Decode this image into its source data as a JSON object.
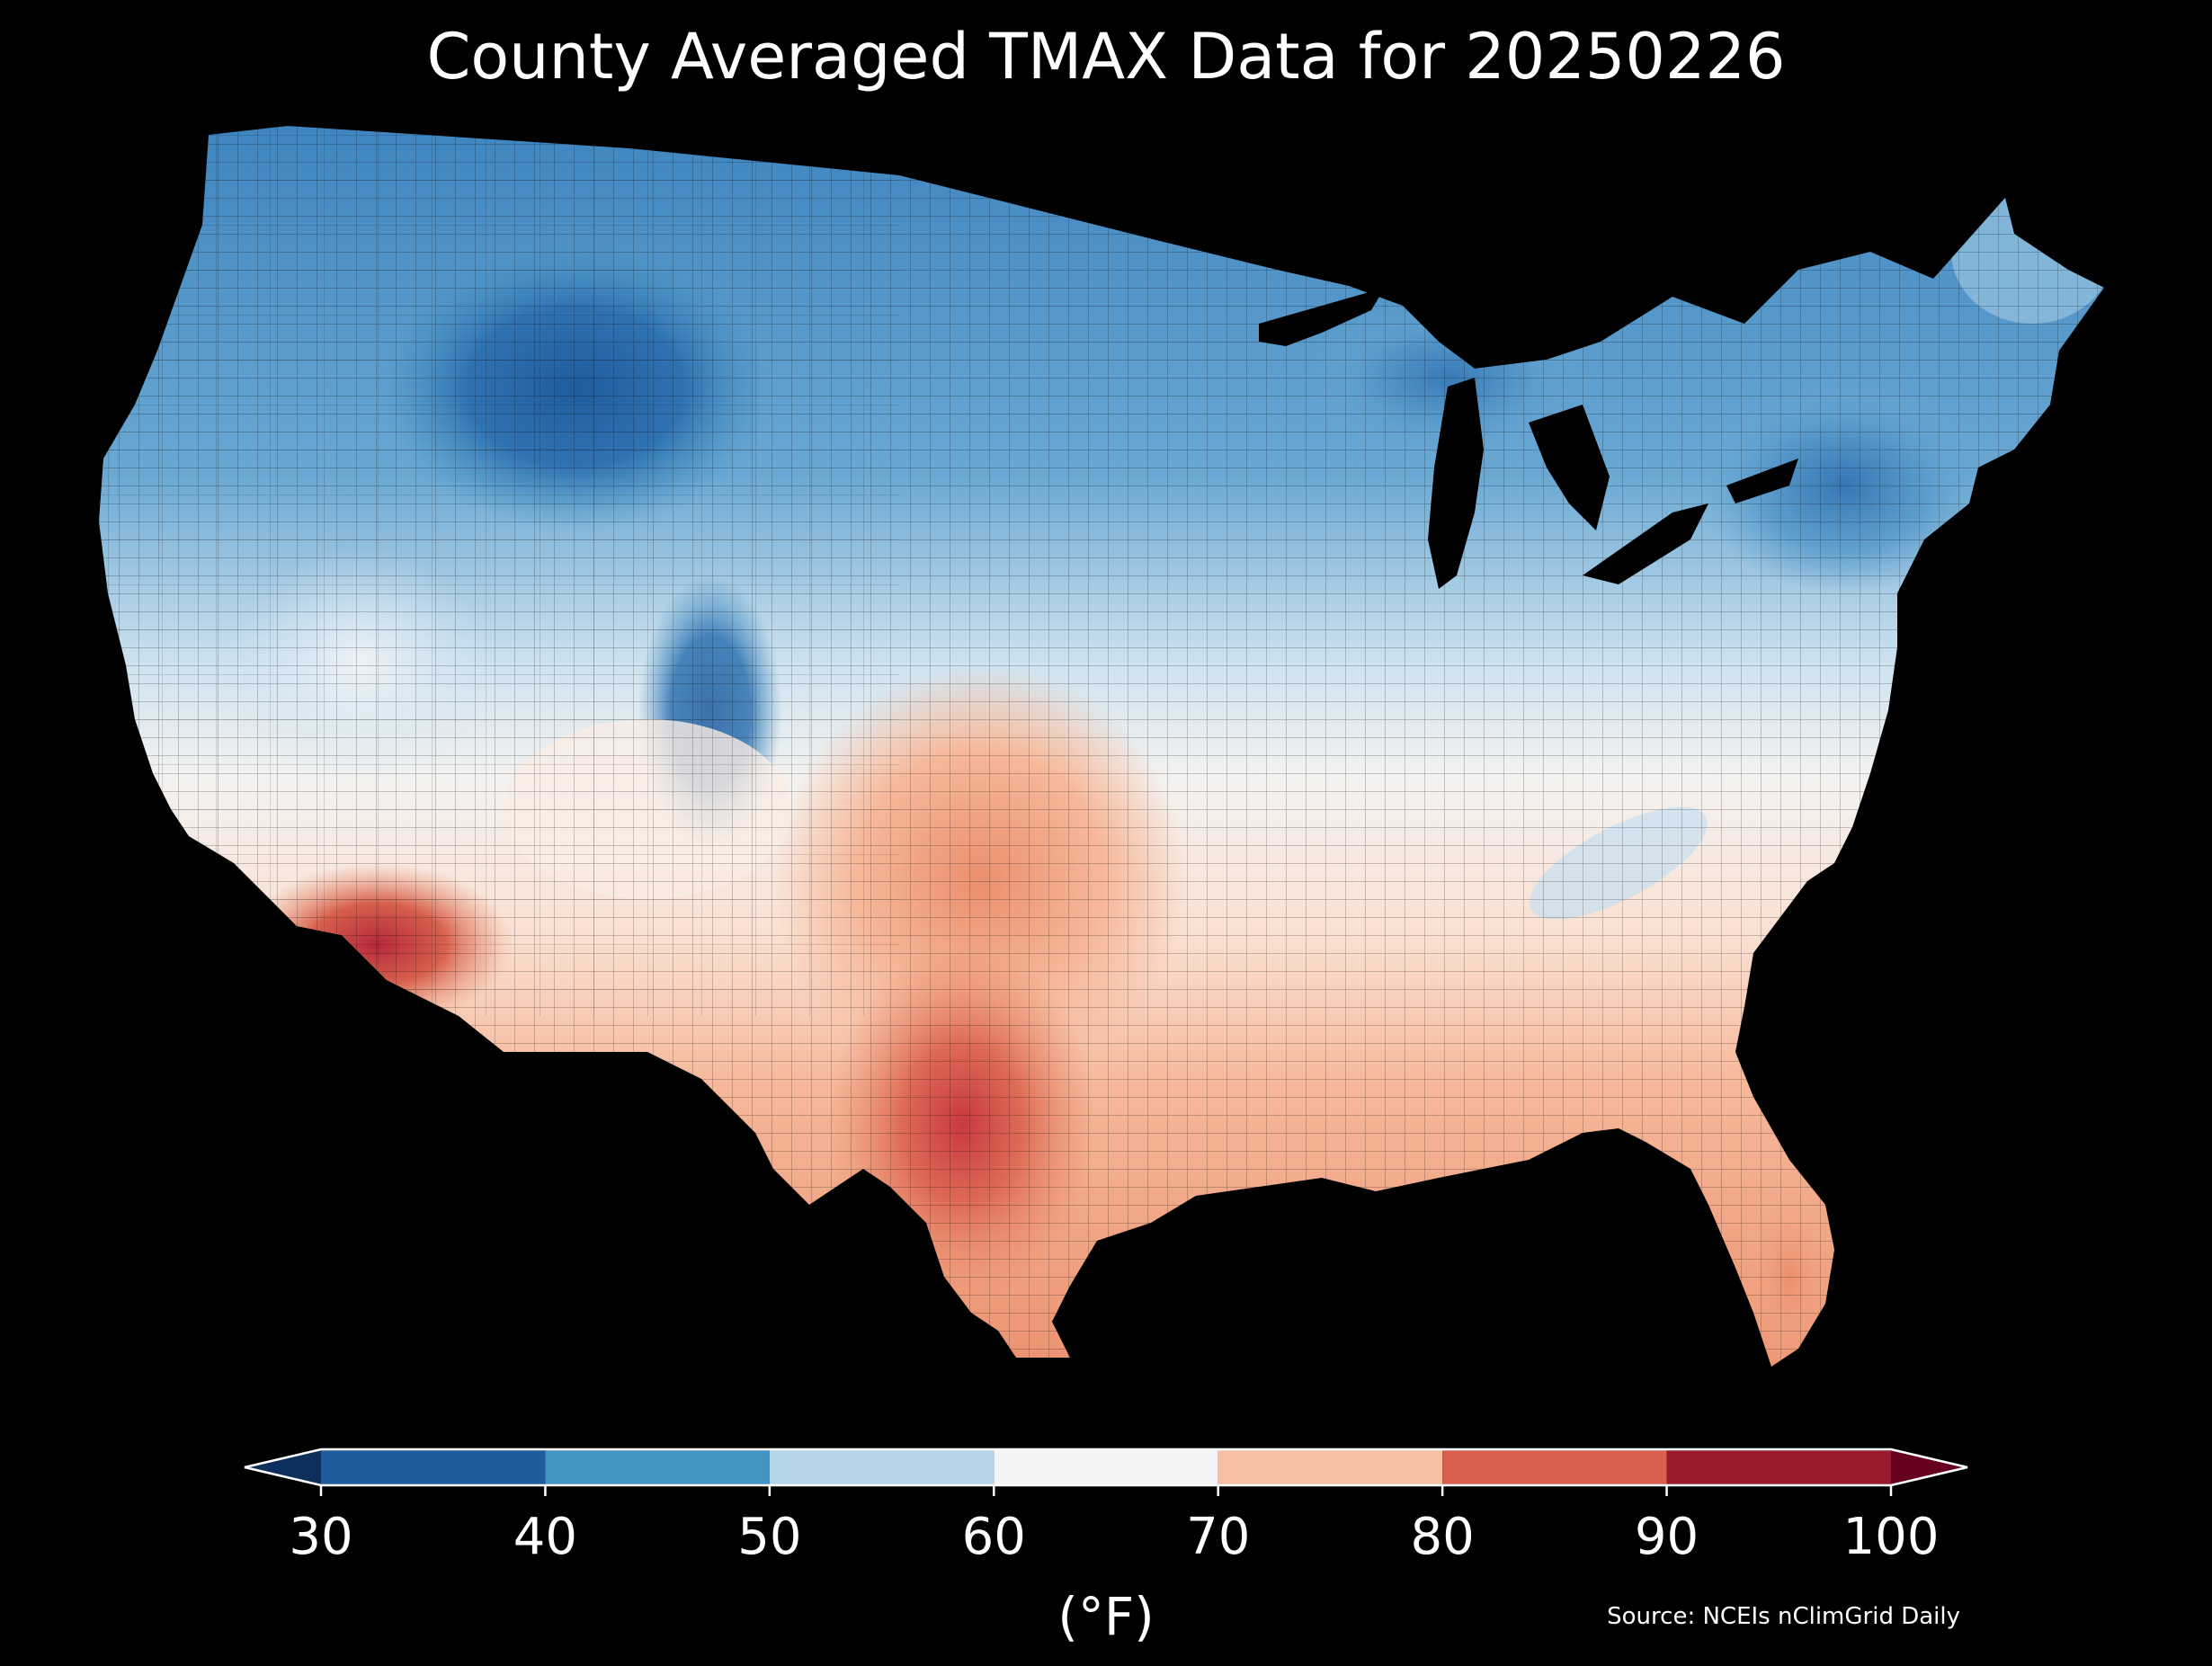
{
  "title": "County Averaged TMAX Data for 20250226",
  "colorbar": {
    "ticks": [
      "30",
      "40",
      "50",
      "60",
      "70",
      "80",
      "90",
      "100"
    ],
    "unit": "(°F)",
    "bins": [
      {
        "from": 30,
        "to": 40,
        "color": "#1f5c9e"
      },
      {
        "from": 40,
        "to": 50,
        "color": "#4393c3"
      },
      {
        "from": 50,
        "to": 60,
        "color": "#b5d6e9"
      },
      {
        "from": 60,
        "to": 70,
        "color": "#f4f4f4"
      },
      {
        "from": 70,
        "to": 80,
        "color": "#f8c0a3"
      },
      {
        "from": 80,
        "to": 90,
        "color": "#d6604d"
      },
      {
        "from": 90,
        "to": 100,
        "color": "#981b2e"
      }
    ],
    "under_color": "#0d2f5e",
    "over_color": "#67001f"
  },
  "source": "Source: NCEIs nClimGrid Daily",
  "map": {
    "region": "Contiguous United States",
    "variable": "TMAX",
    "colors": {
      "deep_blue": "#1f5c9e",
      "blue": "#3d84bf",
      "mid_blue": "#6aa8d3",
      "light_blue": "#b5d6e9",
      "pale_blue": "#e3eef6",
      "white": "#f4f2f0",
      "pale_orange": "#fae0d2",
      "light_orange": "#f6b899",
      "orange": "#eb8f6d",
      "red": "#d6604d",
      "dark_red": "#b7283a",
      "water": "#000000"
    }
  }
}
